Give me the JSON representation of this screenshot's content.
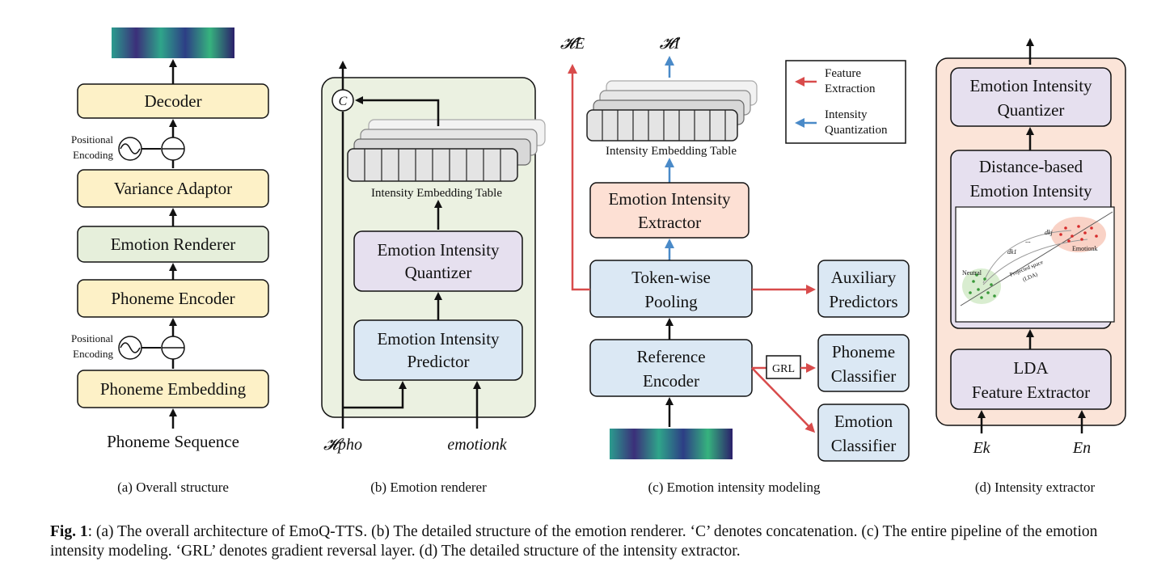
{
  "colors": {
    "yellow_block": "#fdf1c7",
    "green_block": "#e6efdb",
    "blue_block": "#dbe8f4",
    "purple_block": "#e6e0ef",
    "salmon_block": "#fde0d4",
    "renderer_bg": "#ebf1e1",
    "extractor_bg": "#fbe4d8",
    "feature_arrow": "#d84b4b",
    "quant_arrow": "#4a8ac8"
  },
  "panel_a": {
    "decoder": "Decoder",
    "variance_adaptor": "Variance Adaptor",
    "emotion_renderer": "Emotion Renderer",
    "phoneme_encoder": "Phoneme Encoder",
    "phoneme_embedding": "Phoneme Embedding",
    "input": "Phoneme Sequence",
    "pe_top_1": "Positional",
    "pe_top_2": "Encoding",
    "pe_bot_1": "Positional",
    "pe_bot_2": "Encoding",
    "caption": "(a) Overall structure"
  },
  "panel_b": {
    "concat": "C",
    "table_label": "Intensity Embedding Table",
    "quantizer_1": "Emotion Intensity",
    "quantizer_2": "Quantizer",
    "predictor_1": "Emotion Intensity",
    "predictor_2": "Predictor",
    "input_left": "𝓗pho",
    "input_right": "emotionk",
    "caption": "(b) Emotion renderer"
  },
  "panel_c": {
    "out_left": "𝓗E",
    "out_right": "𝓗I",
    "table_label": "Intensity Embedding Table",
    "extractor_1": "Emotion Intensity",
    "extractor_2": "Extractor",
    "pooling_1": "Token-wise",
    "pooling_2": "Pooling",
    "encoder_1": "Reference",
    "encoder_2": "Encoder",
    "aux_1": "Auxiliary",
    "aux_2": "Predictors",
    "phon_1": "Phoneme",
    "phon_2": "Classifier",
    "emo_1": "Emotion",
    "emo_2": "Classifier",
    "grl": "GRL",
    "legend_feature_1": "Feature",
    "legend_feature_2": "Extraction",
    "legend_intensity_1": "Intensity",
    "legend_intensity_2": "Quantization",
    "caption": "(c) Emotion intensity modeling"
  },
  "panel_d": {
    "quantizer_1": "Emotion Intensity",
    "quantizer_2": "Quantizer",
    "distance_1": "Distance-based",
    "distance_2": "Emotion Intensity",
    "lda_1": "LDA",
    "lda_2": "Feature Extractor",
    "plot_neutral": "Neutral",
    "plot_emotion": "Emotionk",
    "plot_dk1": "dk1",
    "plot_dkj": "dkj",
    "plot_dots": "...",
    "plot_proj_1": "Projected space",
    "plot_proj_2": "(LDA)",
    "input_left": "Ek",
    "input_right": "En",
    "caption": "(d) Intensity extractor"
  },
  "figure_caption": {
    "label": "Fig. 1",
    "text": ": (a) The overall architecture of EmoQ-TTS. (b) The detailed structure of the emotion renderer. ‘C’ denotes concatenation. (c) The entire pipeline of the emotion intensity modeling. ‘GRL’ denotes gradient reversal layer. (d) The detailed structure of the intensity extractor."
  }
}
